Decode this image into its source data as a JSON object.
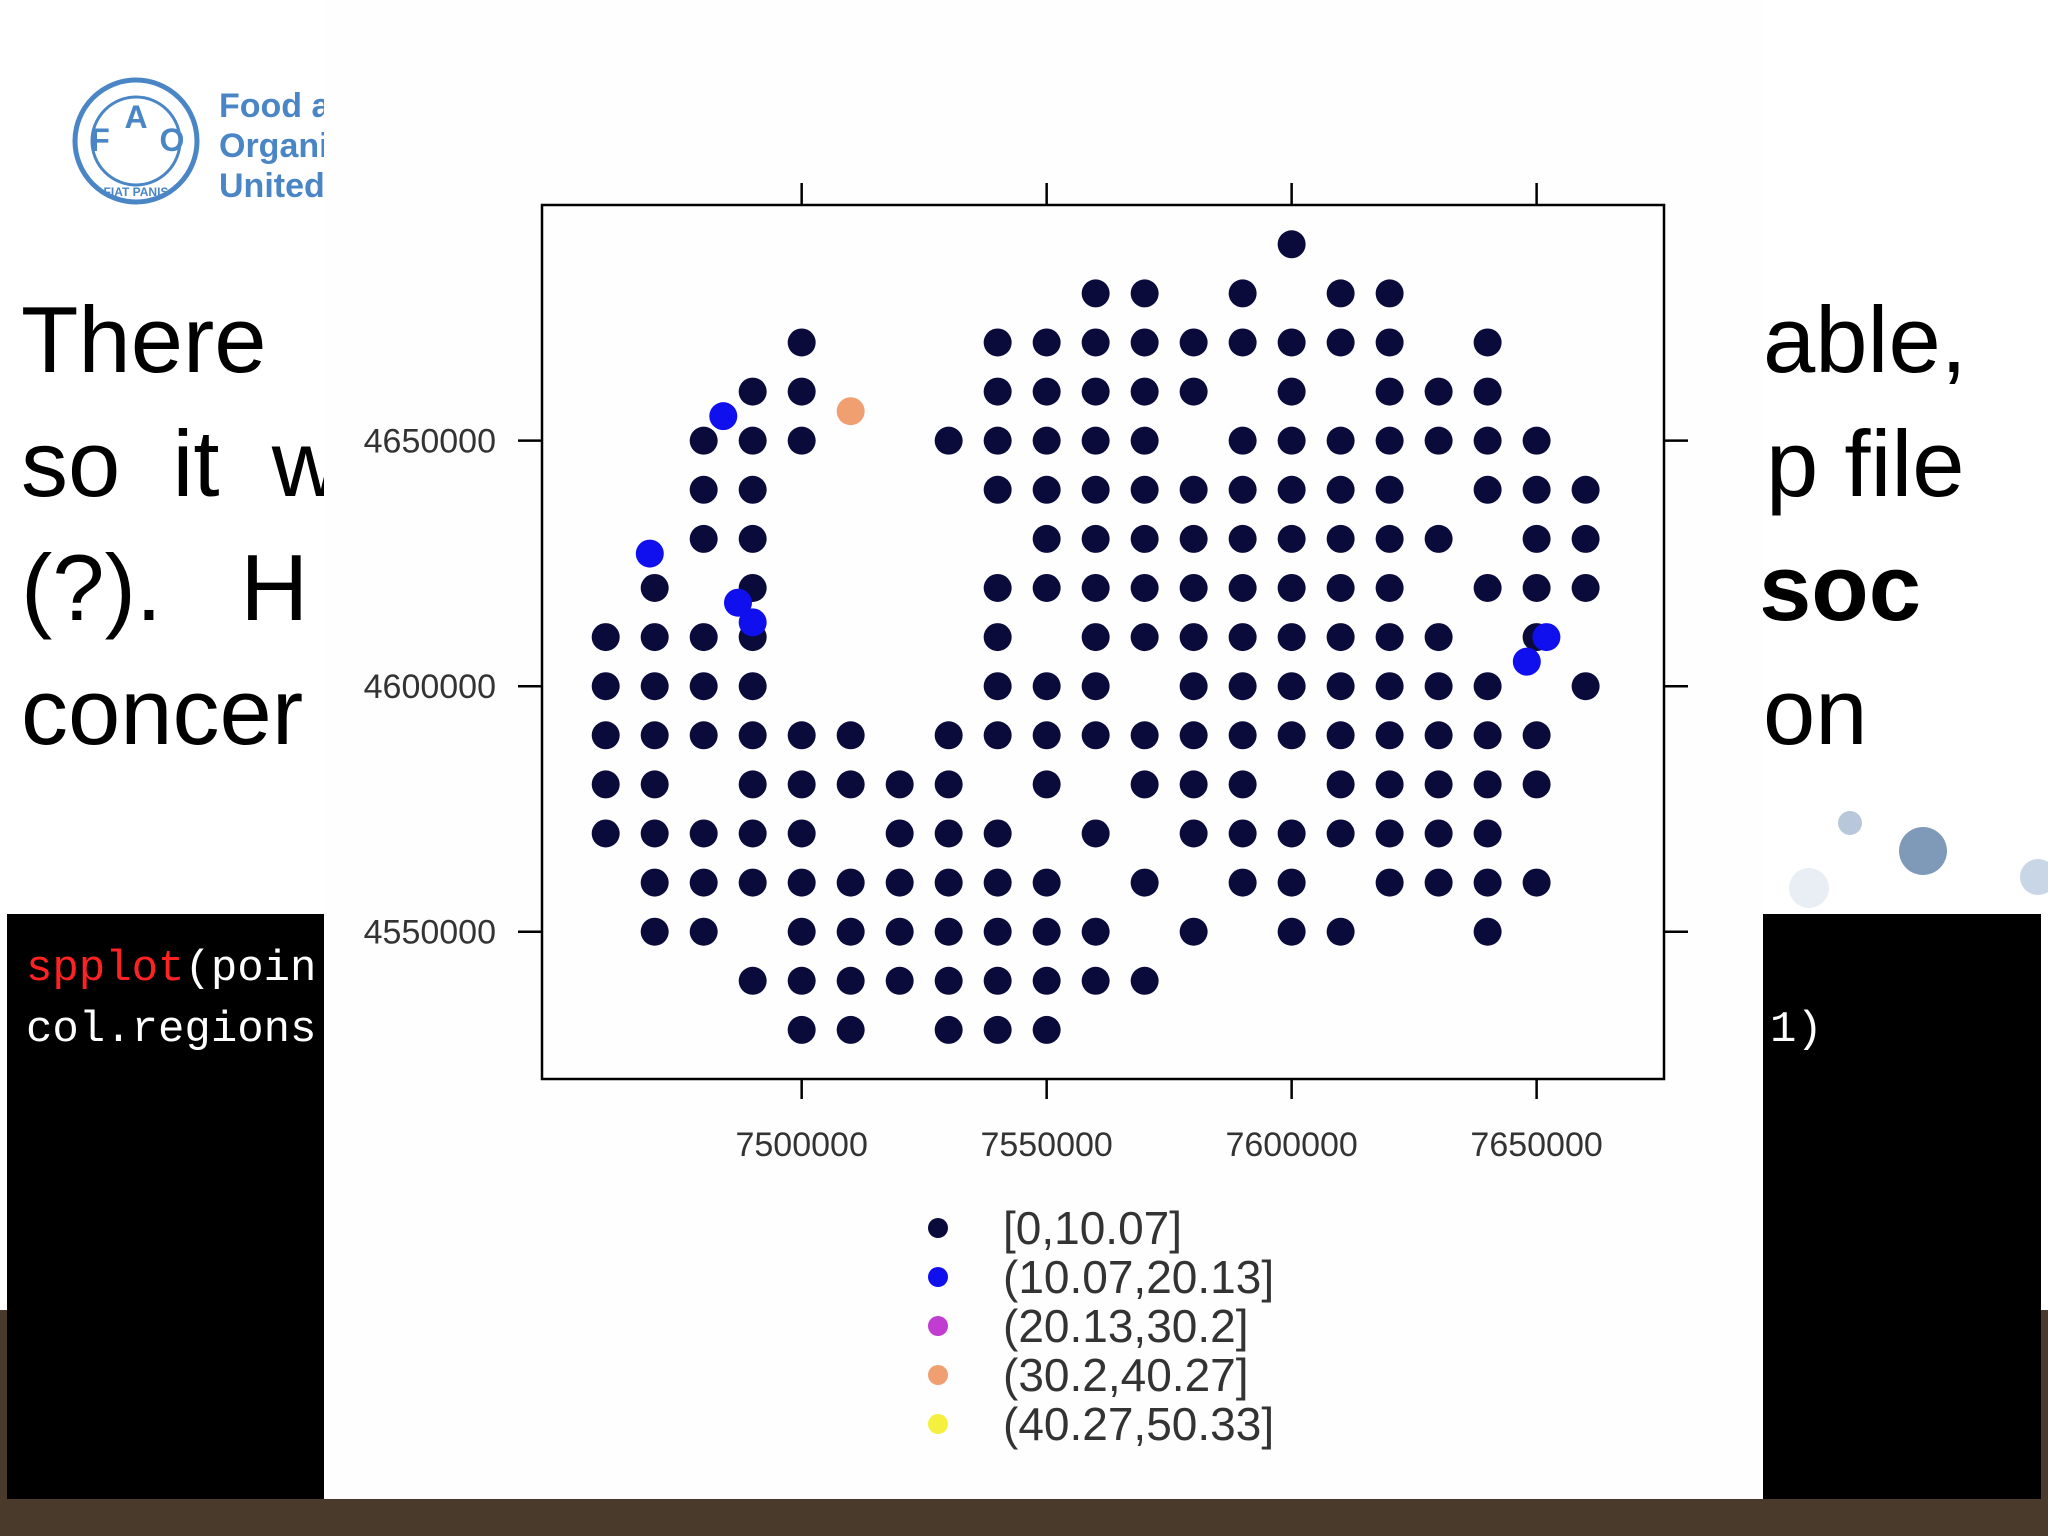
{
  "logo": {
    "letters": [
      "F",
      "A",
      "O"
    ],
    "motto": "FIAT PANIS",
    "name": [
      "Food a",
      "Organi",
      "United"
    ]
  },
  "slide_text": {
    "left": [
      "There",
      "so  it  w",
      "(?).   H",
      "concer"
    ],
    "right": [
      "able,",
      "p file",
      "soc",
      "on"
    ]
  },
  "code": {
    "function": "spplot",
    "line1_rest": "(poin",
    "line2": "col.regions",
    "line2_end": "1)"
  },
  "chart_data": {
    "type": "scatter",
    "xlim": [
      7447000,
      7676000
    ],
    "ylim": [
      4520000,
      4698000
    ],
    "xticks": [
      7500000,
      7550000,
      7600000,
      7650000
    ],
    "yticks": [
      4550000,
      4600000,
      4650000
    ],
    "series": [
      {
        "name": "[0,10.07]",
        "color": "#0b0b3b",
        "x": [
          7600000,
          7560000,
          7570000,
          7590000,
          7610000,
          7620000,
          7500000,
          7540000,
          7550000,
          7560000,
          7570000,
          7580000,
          7590000,
          7600000,
          7610000,
          7620000,
          7640000,
          7490000,
          7500000,
          7540000,
          7550000,
          7560000,
          7570000,
          7580000,
          7600000,
          7620000,
          7630000,
          7640000,
          7480000,
          7490000,
          7500000,
          7530000,
          7540000,
          7550000,
          7560000,
          7570000,
          7590000,
          7600000,
          7610000,
          7620000,
          7630000,
          7640000,
          7650000,
          7480000,
          7490000,
          7540000,
          7550000,
          7560000,
          7570000,
          7580000,
          7590000,
          7600000,
          7610000,
          7620000,
          7640000,
          7650000,
          7660000,
          7480000,
          7490000,
          7550000,
          7560000,
          7570000,
          7580000,
          7590000,
          7600000,
          7610000,
          7620000,
          7630000,
          7650000,
          7660000,
          7470000,
          7490000,
          7540000,
          7550000,
          7560000,
          7570000,
          7580000,
          7590000,
          7600000,
          7610000,
          7620000,
          7640000,
          7650000,
          7660000,
          7460000,
          7470000,
          7480000,
          7490000,
          7540000,
          7560000,
          7570000,
          7580000,
          7590000,
          7600000,
          7610000,
          7620000,
          7630000,
          7650000,
          7460000,
          7470000,
          7480000,
          7490000,
          7540000,
          7550000,
          7560000,
          7580000,
          7590000,
          7600000,
          7610000,
          7620000,
          7630000,
          7640000,
          7660000,
          7460000,
          7470000,
          7480000,
          7490000,
          7500000,
          7510000,
          7530000,
          7540000,
          7550000,
          7560000,
          7570000,
          7580000,
          7590000,
          7600000,
          7610000,
          7620000,
          7630000,
          7640000,
          7650000,
          7460000,
          7470000,
          7490000,
          7500000,
          7510000,
          7520000,
          7530000,
          7550000,
          7570000,
          7580000,
          7590000,
          7610000,
          7620000,
          7630000,
          7640000,
          7650000,
          7460000,
          7470000,
          7480000,
          7490000,
          7500000,
          7520000,
          7530000,
          7540000,
          7560000,
          7580000,
          7590000,
          7600000,
          7610000,
          7620000,
          7630000,
          7640000,
          7470000,
          7480000,
          7490000,
          7500000,
          7510000,
          7520000,
          7530000,
          7540000,
          7550000,
          7570000,
          7590000,
          7600000,
          7620000,
          7630000,
          7640000,
          7650000,
          7470000,
          7480000,
          7500000,
          7510000,
          7520000,
          7530000,
          7540000,
          7550000,
          7560000,
          7580000,
          7600000,
          7610000,
          7640000,
          7490000,
          7500000,
          7510000,
          7520000,
          7530000,
          7540000,
          7550000,
          7560000,
          7570000,
          7500000,
          7510000,
          7530000,
          7540000,
          7550000
        ],
        "y": [
          4690000,
          4680000,
          4680000,
          4680000,
          4680000,
          4680000,
          4670000,
          4670000,
          4670000,
          4670000,
          4670000,
          4670000,
          4670000,
          4670000,
          4670000,
          4670000,
          4670000,
          4660000,
          4660000,
          4660000,
          4660000,
          4660000,
          4660000,
          4660000,
          4660000,
          4660000,
          4660000,
          4660000,
          4650000,
          4650000,
          4650000,
          4650000,
          4650000,
          4650000,
          4650000,
          4650000,
          4650000,
          4650000,
          4650000,
          4650000,
          4650000,
          4650000,
          4650000,
          4640000,
          4640000,
          4640000,
          4640000,
          4640000,
          4640000,
          4640000,
          4640000,
          4640000,
          4640000,
          4640000,
          4640000,
          4640000,
          4640000,
          4630000,
          4630000,
          4630000,
          4630000,
          4630000,
          4630000,
          4630000,
          4630000,
          4630000,
          4630000,
          4630000,
          4630000,
          4630000,
          4620000,
          4620000,
          4620000,
          4620000,
          4620000,
          4620000,
          4620000,
          4620000,
          4620000,
          4620000,
          4620000,
          4620000,
          4620000,
          4620000,
          4610000,
          4610000,
          4610000,
          4610000,
          4610000,
          4610000,
          4610000,
          4610000,
          4610000,
          4610000,
          4610000,
          4610000,
          4610000,
          4610000,
          4600000,
          4600000,
          4600000,
          4600000,
          4600000,
          4600000,
          4600000,
          4600000,
          4600000,
          4600000,
          4600000,
          4600000,
          4600000,
          4600000,
          4600000,
          4590000,
          4590000,
          4590000,
          4590000,
          4590000,
          4590000,
          4590000,
          4590000,
          4590000,
          4590000,
          4590000,
          4590000,
          4590000,
          4590000,
          4590000,
          4590000,
          4590000,
          4590000,
          4590000,
          4580000,
          4580000,
          4580000,
          4580000,
          4580000,
          4580000,
          4580000,
          4580000,
          4580000,
          4580000,
          4580000,
          4580000,
          4580000,
          4580000,
          4580000,
          4580000,
          4570000,
          4570000,
          4570000,
          4570000,
          4570000,
          4570000,
          4570000,
          4570000,
          4570000,
          4570000,
          4570000,
          4570000,
          4570000,
          4570000,
          4570000,
          4570000,
          4560000,
          4560000,
          4560000,
          4560000,
          4560000,
          4560000,
          4560000,
          4560000,
          4560000,
          4560000,
          4560000,
          4560000,
          4560000,
          4560000,
          4560000,
          4560000,
          4550000,
          4550000,
          4550000,
          4550000,
          4550000,
          4550000,
          4550000,
          4550000,
          4550000,
          4550000,
          4550000,
          4550000,
          4550000,
          4540000,
          4540000,
          4540000,
          4540000,
          4540000,
          4540000,
          4540000,
          4540000,
          4540000,
          4530000,
          4530000,
          4530000,
          4530000,
          4530000
        ]
      },
      {
        "name": "(10.07,20.13]",
        "color": "#1010ee",
        "x": [
          7469000,
          7487000,
          7490000,
          7648000,
          7652000,
          7484000
        ],
        "y": [
          4627000,
          4617000,
          4613000,
          4605000,
          4610000,
          4655000
        ]
      },
      {
        "name": "(20.13,30.2]",
        "color": "#c13cd0",
        "x": [],
        "y": []
      },
      {
        "name": "(30.2,40.27]",
        "color": "#f0a070",
        "x": [
          7510000
        ],
        "y": [
          4656000
        ]
      },
      {
        "name": "(40.27,50.33]",
        "color": "#f5f040",
        "x": [],
        "y": []
      }
    ]
  }
}
